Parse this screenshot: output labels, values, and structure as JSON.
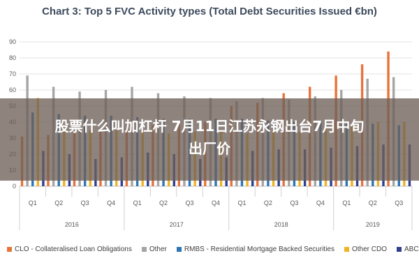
{
  "overlay": {
    "headline_line1": "股票什么叫加杠杆 7月11日江苏永钢出台7月中旬",
    "headline_line2": "出厂价"
  },
  "chart_data": {
    "type": "bar",
    "title": "Chart 3: Top 5 FVC Activity types (Total Debt Securities Issued €bn)",
    "quarters": [
      "Q1",
      "Q2",
      "Q3",
      "Q4",
      "Q1",
      "Q2",
      "Q3",
      "Q4",
      "Q1",
      "Q2",
      "Q3",
      "Q4",
      "Q1",
      "Q2",
      "Q3"
    ],
    "years": [
      {
        "label": "2016",
        "span": 4
      },
      {
        "label": "2017",
        "span": 4
      },
      {
        "label": "2018",
        "span": 4
      },
      {
        "label": "2019",
        "span": 3
      }
    ],
    "yticks": [
      0,
      10,
      20,
      30,
      40,
      50,
      60,
      70,
      80,
      90
    ],
    "ylim": [
      0,
      90
    ],
    "grid": true,
    "legend_position": "bottom",
    "series": [
      {
        "name": "CLO - Collateralised Loan Obligations",
        "color": "#e8733a",
        "values": [
          31,
          32,
          33,
          36,
          36,
          38,
          39,
          40,
          50,
          52,
          58,
          62,
          69,
          76,
          84
        ]
      },
      {
        "name": "Other",
        "color": "#a5a5a5",
        "values": [
          69,
          62,
          59,
          60,
          62,
          58,
          56,
          55,
          53,
          55,
          54,
          56,
          60,
          67,
          68
        ]
      },
      {
        "name": "RMBS - Residential Mortgage Backed Securities",
        "color": "#2e75b6",
        "values": [
          46,
          45,
          44,
          44,
          43,
          42,
          42,
          42,
          42,
          41,
          40,
          40,
          39,
          39,
          38
        ]
      },
      {
        "name": "Other CDO",
        "color": "#f0b323",
        "values": [
          55,
          36,
          35,
          35,
          34,
          33,
          34,
          34,
          33,
          34,
          34,
          36,
          38,
          40,
          40
        ]
      },
      {
        "name": "ABCP",
        "color": "#2f3f8f",
        "values": [
          22,
          20,
          17,
          18,
          21,
          20,
          17,
          18,
          22,
          23,
          23,
          24,
          25,
          26,
          26
        ]
      }
    ]
  }
}
